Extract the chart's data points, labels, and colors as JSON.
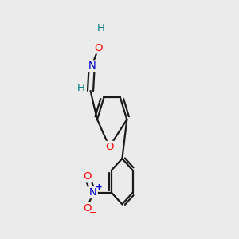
{
  "bg_color": "#ebebeb",
  "atom_color_N": "#0000cc",
  "atom_color_O": "#ff0000",
  "atom_color_H": "#008080",
  "bond_color": "#1a1a1a",
  "bond_width": 1.6,
  "figsize": [
    3.0,
    3.0
  ],
  "dpi": 100,
  "xlim": [
    -1.4,
    1.4
  ],
  "ylim": [
    -3.2,
    2.2
  ]
}
